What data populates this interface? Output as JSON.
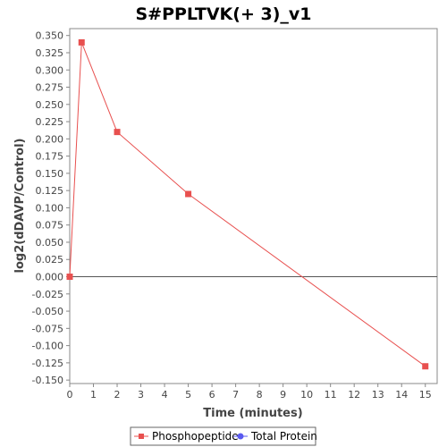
{
  "chart_data": {
    "type": "line",
    "title": "S#PPLTVK(+ 3)_v1",
    "xlabel": "Time (minutes)",
    "ylabel": "log2(dDAVP/Control)",
    "xlim": [
      0,
      15.5
    ],
    "ylim": [
      -0.155,
      0.36
    ],
    "x_ticks": [
      0,
      1,
      2,
      3,
      4,
      5,
      6,
      7,
      8,
      9,
      10,
      11,
      12,
      13,
      14,
      15
    ],
    "y_ticks": [
      0.35,
      0.325,
      0.3,
      0.275,
      0.25,
      0.225,
      0.2,
      0.175,
      0.15,
      0.125,
      0.1,
      0.075,
      0.05,
      0.025,
      0.0,
      -0.025,
      -0.05,
      -0.075,
      -0.1,
      -0.125,
      -0.15
    ],
    "y_tick_labels": [
      "0.350",
      "0.325",
      "0.300",
      "0.275",
      "0.250",
      "0.225",
      "0.200",
      "0.175",
      "0.150",
      "0.125",
      "0.100",
      "0.075",
      "0.050",
      "0.025",
      "0.000",
      "-0.025",
      "-0.050",
      "-0.075",
      "-0.100",
      "-0.125",
      "-0.150"
    ],
    "zero_line": true,
    "grid": false,
    "legend_position": "bottom",
    "series": [
      {
        "name": "Phosphopeptide",
        "color": "#e8504f",
        "marker": "square",
        "x": [
          0,
          0.5,
          2,
          5,
          15
        ],
        "y": [
          0.0,
          0.34,
          0.21,
          0.12,
          -0.13
        ]
      },
      {
        "name": "Total Protein",
        "color": "#5a5af0",
        "marker": "circle",
        "x": [],
        "y": []
      }
    ]
  }
}
